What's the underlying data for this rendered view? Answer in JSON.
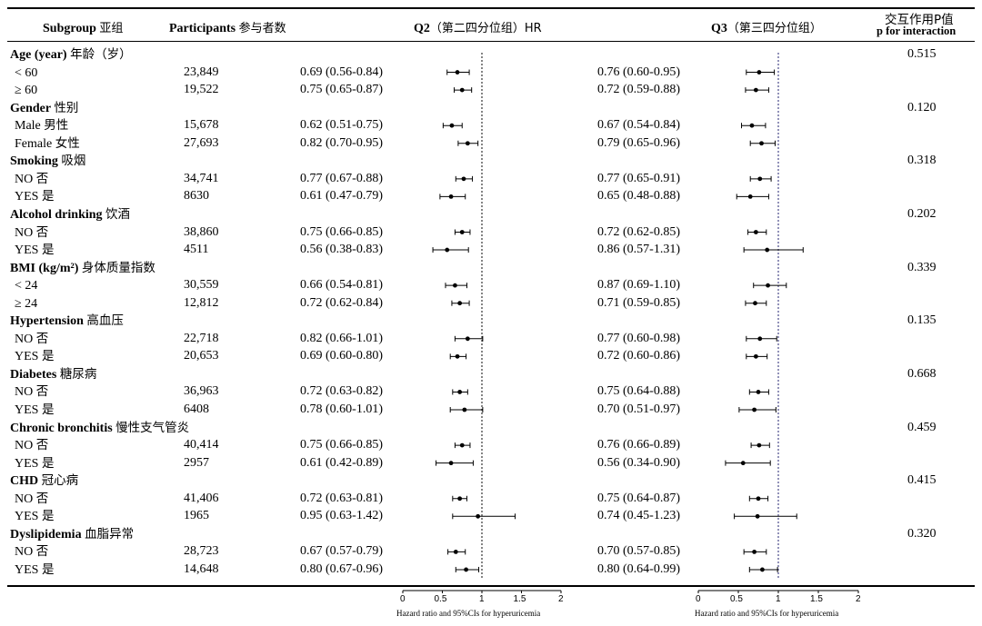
{
  "header": {
    "subgroup_en": "Subgroup",
    "subgroup_cn": "亚组",
    "participants_en": "Participants",
    "participants_cn": "参与者数",
    "q2_en": "Q2",
    "q2_cn": "（第二四分位组）HR",
    "q3_en": "Q3",
    "q3_cn": "（第三四分位组）",
    "pint_cn": "交互作用P值",
    "pint_en": "p for interaction"
  },
  "rows": [
    {
      "type": "group",
      "label_en": "Age (year)",
      "label_cn": "年龄（岁）",
      "p": "0.515"
    },
    {
      "type": "sub",
      "label_en": "< 60",
      "label_cn": "",
      "n": "23,849",
      "q2_text": "0.69 (0.56-0.84)",
      "q3_text": "0.76 (0.60-0.95)"
    },
    {
      "type": "sub",
      "label_en": "≥ 60",
      "label_cn": "",
      "n": "19,522",
      "q2_text": "0.75 (0.65-0.87)",
      "q3_text": "0.72 (0.59-0.88)"
    },
    {
      "type": "group",
      "label_en": "Gender",
      "label_cn": "性别",
      "p": "0.120"
    },
    {
      "type": "sub",
      "label_en": "Male",
      "label_cn": "男性",
      "n": "15,678",
      "q2_text": "0.62 (0.51-0.75)",
      "q3_text": "0.67 (0.54-0.84)"
    },
    {
      "type": "sub",
      "label_en": "Female",
      "label_cn": "女性",
      "n": "27,693",
      "q2_text": "0.82 (0.70-0.95)",
      "q3_text": "0.79 (0.65-0.96)"
    },
    {
      "type": "group",
      "label_en": "Smoking",
      "label_cn": "吸烟",
      "p": "0.318"
    },
    {
      "type": "sub",
      "label_en": "NO",
      "label_cn": "否",
      "n": "34,741",
      "q2_text": "0.77 (0.67-0.88)",
      "q3_text": "0.77 (0.65-0.91)"
    },
    {
      "type": "sub",
      "label_en": "YES",
      "label_cn": "是",
      "n": "8630",
      "q2_text": "0.61 (0.47-0.79)",
      "q3_text": "0.65 (0.48-0.88)"
    },
    {
      "type": "group",
      "label_en": "Alcohol drinking",
      "label_cn": "饮酒",
      "p": "0.202"
    },
    {
      "type": "sub",
      "label_en": "NO",
      "label_cn": "否",
      "n": "38,860",
      "q2_text": "0.75 (0.66-0.85)",
      "q3_text": "0.72 (0.62-0.85)"
    },
    {
      "type": "sub",
      "label_en": "YES",
      "label_cn": "是",
      "n": "4511",
      "q2_text": "0.56 (0.38-0.83)",
      "q3_text": "0.86 (0.57-1.31)"
    },
    {
      "type": "group",
      "label_en": "BMI (kg/m²)",
      "label_cn": "身体质量指数",
      "p": "0.339"
    },
    {
      "type": "sub",
      "label_en": "< 24",
      "label_cn": "",
      "n": "30,559",
      "q2_text": "0.66 (0.54-0.81)",
      "q3_text": "0.87 (0.69-1.10)"
    },
    {
      "type": "sub",
      "label_en": "≥ 24",
      "label_cn": "",
      "n": "12,812",
      "q2_text": "0.72 (0.62-0.84)",
      "q3_text": "0.71 (0.59-0.85)"
    },
    {
      "type": "group",
      "label_en": "Hypertension",
      "label_cn": "高血压",
      "p": "0.135"
    },
    {
      "type": "sub",
      "label_en": "NO",
      "label_cn": "否",
      "n": "22,718",
      "q2_text": "0.82 (0.66-1.01)",
      "q3_text": "0.77 (0.60-0.98)"
    },
    {
      "type": "sub",
      "label_en": "YES",
      "label_cn": "是",
      "n": "20,653",
      "q2_text": "0.69 (0.60-0.80)",
      "q3_text": "0.72 (0.60-0.86)"
    },
    {
      "type": "group",
      "label_en": "Diabetes",
      "label_cn": "糖尿病",
      "p": "0.668"
    },
    {
      "type": "sub",
      "label_en": "NO",
      "label_cn": "否",
      "n": "36,963",
      "q2_text": "0.72 (0.63-0.82)",
      "q3_text": "0.75 (0.64-0.88)"
    },
    {
      "type": "sub",
      "label_en": "YES",
      "label_cn": "是",
      "n": "6408",
      "q2_text": "0.78 (0.60-1.01)",
      "q3_text": "0.70 (0.51-0.97)"
    },
    {
      "type": "group",
      "label_en": "Chronic bronchitis",
      "label_cn": "慢性支气管炎",
      "p": "0.459"
    },
    {
      "type": "sub",
      "label_en": "NO",
      "label_cn": "否",
      "n": "40,414",
      "q2_text": "0.75 (0.66-0.85)",
      "q3_text": "0.76 (0.66-0.89)"
    },
    {
      "type": "sub",
      "label_en": "YES",
      "label_cn": "是",
      "n": "2957",
      "q2_text": "0.61 (0.42-0.89)",
      "q3_text": "0.56 (0.34-0.90)"
    },
    {
      "type": "group",
      "label_en": "CHD",
      "label_cn": "冠心病",
      "p": "0.415"
    },
    {
      "type": "sub",
      "label_en": "NO",
      "label_cn": "否",
      "n": "41,406",
      "q2_text": "0.72 (0.63-0.81)",
      "q3_text": "0.75 (0.64-0.87)"
    },
    {
      "type": "sub",
      "label_en": "YES",
      "label_cn": "是",
      "n": "1965",
      "q2_text": "0.95 (0.63-1.42)",
      "q3_text": "0.74 (0.45-1.23)"
    },
    {
      "type": "group",
      "label_en": "Dyslipidemia",
      "label_cn": "血脂异常",
      "p": "0.320"
    },
    {
      "type": "sub",
      "label_en": "NO",
      "label_cn": "否",
      "n": "28,723",
      "q2_text": "0.67 (0.57-0.79)",
      "q3_text": "0.70 (0.57-0.85)"
    },
    {
      "type": "sub",
      "label_en": "YES",
      "label_cn": "是",
      "n": "14,648",
      "q2_text": "0.80 (0.67-0.96)",
      "q3_text": "0.80 (0.64-0.99)"
    }
  ],
  "chart_data": {
    "type": "forest",
    "xlim": [
      0,
      2
    ],
    "xticks": [
      "0",
      "0.5",
      "1",
      "1.5",
      "2"
    ],
    "reference_line": 1,
    "xlabel": "Hazard ratio and 95%CIs for hyperuricemia",
    "series": [
      {
        "name": "Q2",
        "points": [
          {
            "hr": 0.69,
            "lo": 0.56,
            "hi": 0.84
          },
          {
            "hr": 0.75,
            "lo": 0.65,
            "hi": 0.87
          },
          {
            "hr": 0.62,
            "lo": 0.51,
            "hi": 0.75
          },
          {
            "hr": 0.82,
            "lo": 0.7,
            "hi": 0.95
          },
          {
            "hr": 0.77,
            "lo": 0.67,
            "hi": 0.88
          },
          {
            "hr": 0.61,
            "lo": 0.47,
            "hi": 0.79
          },
          {
            "hr": 0.75,
            "lo": 0.66,
            "hi": 0.85
          },
          {
            "hr": 0.56,
            "lo": 0.38,
            "hi": 0.83
          },
          {
            "hr": 0.66,
            "lo": 0.54,
            "hi": 0.81
          },
          {
            "hr": 0.72,
            "lo": 0.62,
            "hi": 0.84
          },
          {
            "hr": 0.82,
            "lo": 0.66,
            "hi": 1.01
          },
          {
            "hr": 0.69,
            "lo": 0.6,
            "hi": 0.8
          },
          {
            "hr": 0.72,
            "lo": 0.63,
            "hi": 0.82
          },
          {
            "hr": 0.78,
            "lo": 0.6,
            "hi": 1.01
          },
          {
            "hr": 0.75,
            "lo": 0.66,
            "hi": 0.85
          },
          {
            "hr": 0.61,
            "lo": 0.42,
            "hi": 0.89
          },
          {
            "hr": 0.72,
            "lo": 0.63,
            "hi": 0.81
          },
          {
            "hr": 0.95,
            "lo": 0.63,
            "hi": 1.42
          },
          {
            "hr": 0.67,
            "lo": 0.57,
            "hi": 0.79
          },
          {
            "hr": 0.8,
            "lo": 0.67,
            "hi": 0.96
          }
        ]
      },
      {
        "name": "Q3",
        "points": [
          {
            "hr": 0.76,
            "lo": 0.6,
            "hi": 0.95
          },
          {
            "hr": 0.72,
            "lo": 0.59,
            "hi": 0.88
          },
          {
            "hr": 0.67,
            "lo": 0.54,
            "hi": 0.84
          },
          {
            "hr": 0.79,
            "lo": 0.65,
            "hi": 0.96
          },
          {
            "hr": 0.77,
            "lo": 0.65,
            "hi": 0.91
          },
          {
            "hr": 0.65,
            "lo": 0.48,
            "hi": 0.88
          },
          {
            "hr": 0.72,
            "lo": 0.62,
            "hi": 0.85
          },
          {
            "hr": 0.86,
            "lo": 0.57,
            "hi": 1.31
          },
          {
            "hr": 0.87,
            "lo": 0.69,
            "hi": 1.1
          },
          {
            "hr": 0.71,
            "lo": 0.59,
            "hi": 0.85
          },
          {
            "hr": 0.77,
            "lo": 0.6,
            "hi": 0.98
          },
          {
            "hr": 0.72,
            "lo": 0.6,
            "hi": 0.86
          },
          {
            "hr": 0.75,
            "lo": 0.64,
            "hi": 0.88
          },
          {
            "hr": 0.7,
            "lo": 0.51,
            "hi": 0.97
          },
          {
            "hr": 0.76,
            "lo": 0.66,
            "hi": 0.89
          },
          {
            "hr": 0.56,
            "lo": 0.34,
            "hi": 0.9
          },
          {
            "hr": 0.75,
            "lo": 0.64,
            "hi": 0.87
          },
          {
            "hr": 0.74,
            "lo": 0.45,
            "hi": 1.23
          },
          {
            "hr": 0.7,
            "lo": 0.57,
            "hi": 0.85
          },
          {
            "hr": 0.8,
            "lo": 0.64,
            "hi": 0.99
          }
        ]
      }
    ]
  }
}
